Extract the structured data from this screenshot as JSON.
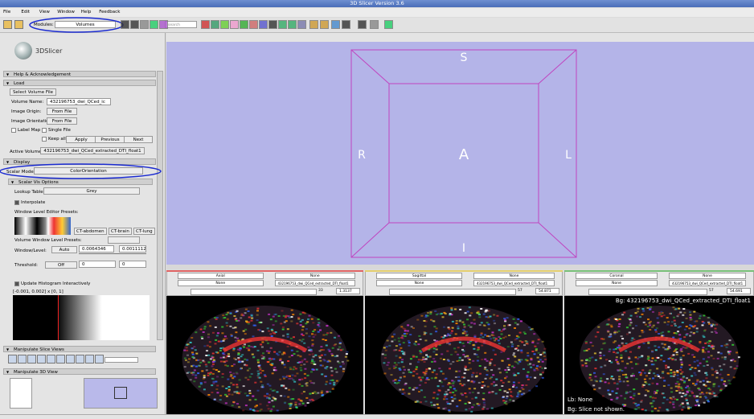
{
  "window": {
    "title": "3D Slicer Version 3.6"
  },
  "menu": [
    "File",
    "Edit",
    "View",
    "Window",
    "Help",
    "Feedback"
  ],
  "toolbar": {
    "modules_label": "Modules:",
    "module": "Volumes",
    "search": "search modules"
  },
  "logo": "3DSlicer",
  "panel": {
    "help_section": "Help & Acknowledgement",
    "load_section": "Load",
    "select_button": "Select Volume File",
    "volume_name_label": "Volume Name:",
    "volume_name": "432196753_dwi_QCed_ic",
    "image_origin_label": "Image Origin:",
    "image_origin": "From File",
    "image_orientation_label": "Image Orientation:",
    "image_orientation": "From File",
    "label_map": "Label Map",
    "single_file": "Single File",
    "keep_all": "Keep all",
    "apply": "Apply",
    "previous": "Previous",
    "next": "Next",
    "active_volume_label": "Active Volume:",
    "active_volume": "432196753_dwi_QCed_extracted_DTI_float1",
    "display_section": "Display",
    "scalar_mode_label": "Scalar Mode",
    "scalar_mode": "ColorOrientation",
    "scalar_vis": "Scalar Vis Options",
    "lookup_label": "Lookup Table:",
    "lookup": "Grey",
    "interpolate": "Interpolate",
    "presets_label": "Window Level Editor Presets:",
    "presets": [
      "CT-abdomen",
      "CT-brain",
      "CT-lung"
    ],
    "volume_presets": "Volume Window Level Presets:",
    "wl_label": "Window/Level:",
    "wl_mode": "Auto",
    "window": "0.0064346",
    "level": "0.0011112",
    "threshold_label": "Threshold:",
    "threshold_mode": "Off",
    "threshold_low": "0",
    "threshold_high": "0",
    "update_histogram": "Update Histogram Interactively",
    "range": "[-0.001, 0.002] x [0, 1]",
    "slice_section": "Manipulate Slice Views",
    "view3d_section": "Manipulate 3D View"
  },
  "view3d": {
    "labels": {
      "S": "S",
      "A": "A",
      "R": "R",
      "L": "L",
      "I": "I"
    }
  },
  "slices": [
    {
      "orientation": "Axial",
      "fg": "None",
      "label": "None",
      "bg": "432196753_dwi_QCed_extracted_DTI_float1",
      "offset": "33",
      "value": "1.3137"
    },
    {
      "orientation": "Sagittal",
      "fg": "None",
      "label": "None",
      "bg": "432196753_dwi_QCed_extracted_DTI_float1",
      "offset": "57",
      "value": "54.871"
    },
    {
      "orientation": "Coronal",
      "fg": "None",
      "label": "None",
      "bg": "432196753_dwi_QCed_extracted_DTI_float1",
      "offset": "57",
      "value": "54.691"
    }
  ],
  "overlay": {
    "bg": "Bg: 432196753_dwi_QCed_extracted_DTI_float1",
    "lb": "Lb: None",
    "bg_bottom": "Bg: Slice not shown."
  }
}
